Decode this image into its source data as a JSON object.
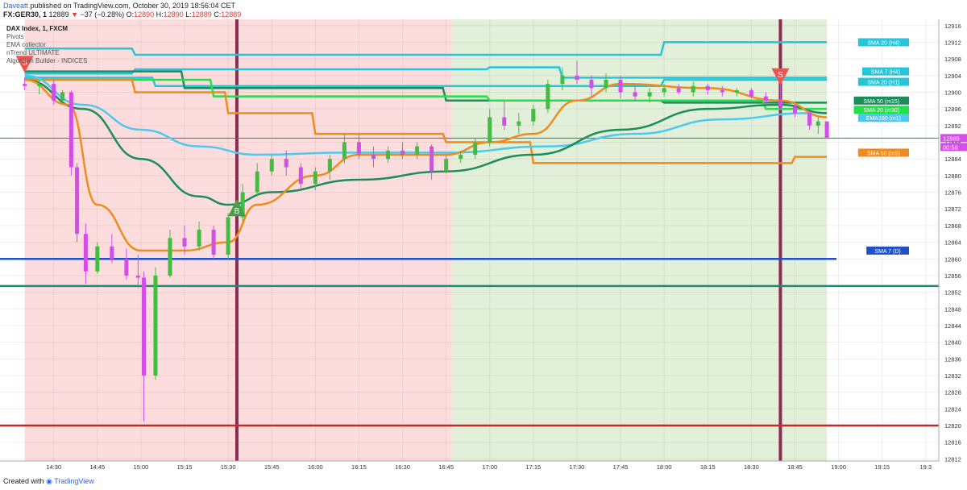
{
  "header": {
    "author": "Daveatt",
    "published": "published on TradingView.com, October 30, 2019 18:56:04 CET",
    "symbol": "FX:GER30, 1",
    "last": "12889",
    "change": "−37 (−0.28%)",
    "open_label": "O:",
    "open": "12890",
    "high_label": "H:",
    "high": "12890",
    "low_label": "L:",
    "low": "12889",
    "close_label": "C:",
    "close": "12889"
  },
  "indicators": {
    "title": "DAX Index, 1, FXCM",
    "items": [
      "Pivots",
      "EMA collector",
      "nTrend ULTIMATE",
      "Algorithm Builder - INDICES"
    ]
  },
  "footer": {
    "created": "Created with",
    "brand": "TradingView"
  },
  "colors": {
    "bg_red": "#fcdcdc",
    "bg_green": "#e2efd9",
    "bull": "#3fbf3f",
    "bear": "#d24ee6",
    "sma20_h4": "#26c6da",
    "sma7_h4": "#26c6da",
    "sma20_h1": "#26c6da",
    "sma50_m15": "#1a8d5a",
    "sma20_m30": "#23e04a",
    "ema180_m1": "#4dc8f0",
    "sma50_m5": "#f08c1e",
    "sma7_d": "#1e50c8",
    "pivot": "#c82828",
    "support": "#1a8c78"
  },
  "chart_data": {
    "type": "candlestick",
    "symbol": "FX:GER30",
    "interval": "1",
    "x_ticks": [
      "14:30",
      "14:45",
      "15:00",
      "15:15",
      "15:30",
      "15:45",
      "16:00",
      "16:15",
      "16:30",
      "16:45",
      "17:00",
      "17:15",
      "17:30",
      "17:45",
      "18:00",
      "18:15",
      "18:30",
      "18:45",
      "19:00",
      "19:15",
      "19:3"
    ],
    "y_ticks": [
      12916,
      12912,
      12908,
      12904,
      12900,
      12896,
      12892,
      12888,
      12884,
      12880,
      12876,
      12872,
      12868,
      12864,
      12860,
      12856,
      12852,
      12848,
      12844,
      12840,
      12836,
      12832,
      12828,
      12824,
      12820,
      12816,
      12812
    ],
    "ylim": [
      12811.5,
      12917.5
    ],
    "last_price_label": "12889",
    "countdown_label": "00:58",
    "sessions": [
      {
        "from": "14:20",
        "to": "16:47",
        "color": "red"
      },
      {
        "from": "16:47",
        "to": "18:56",
        "color": "green"
      }
    ],
    "candles": [
      [
        "14:20",
        12902.0,
        12903.5,
        12900.5,
        12901.5
      ],
      [
        "14:25",
        12901.5,
        12903.0,
        12899.5,
        12902.0
      ],
      [
        "14:30",
        12902.0,
        12903.0,
        12897.0,
        12898.0
      ],
      [
        "14:33",
        12898.0,
        12900.5,
        12897.5,
        12900.0
      ],
      [
        "14:36",
        12900.0,
        12900.5,
        12880.0,
        12882.0
      ],
      [
        "14:38",
        12882.0,
        12883.0,
        12864.0,
        12866.0
      ],
      [
        "14:41",
        12866.0,
        12868.5,
        12854.0,
        12857.0
      ],
      [
        "14:45",
        12857.0,
        12864.0,
        12856.5,
        12863.0
      ],
      [
        "14:50",
        12863.0,
        12866.0,
        12859.0,
        12860.0
      ],
      [
        "14:55",
        12860.0,
        12862.5,
        12855.0,
        12856.0
      ],
      [
        "14:59",
        12856.0,
        12861.0,
        12853.0,
        12855.5
      ],
      [
        "15:01",
        12855.5,
        12857.0,
        12821.0,
        12832.0
      ],
      [
        "15:05",
        12832.0,
        12858.0,
        12831.0,
        12856.0
      ],
      [
        "15:10",
        12856.0,
        12867.0,
        12855.5,
        12865.0
      ],
      [
        "15:15",
        12865.0,
        12868.0,
        12861.0,
        12863.0
      ],
      [
        "15:20",
        12863.0,
        12869.0,
        12862.0,
        12867.0
      ],
      [
        "15:25",
        12867.0,
        12868.0,
        12860.0,
        12861.0
      ],
      [
        "15:30",
        12861.0,
        12871.0,
        12860.0,
        12870.0
      ],
      [
        "15:35",
        12870.0,
        12878.0,
        12869.0,
        12876.0
      ],
      [
        "15:40",
        12876.0,
        12883.0,
        12875.0,
        12881.0
      ],
      [
        "15:45",
        12881.0,
        12885.0,
        12880.0,
        12884.0
      ],
      [
        "15:50",
        12884.0,
        12886.0,
        12880.0,
        12882.0
      ],
      [
        "15:55",
        12882.0,
        12883.0,
        12877.0,
        12878.0
      ],
      [
        "16:00",
        12878.0,
        12882.0,
        12876.5,
        12881.0
      ],
      [
        "16:05",
        12881.0,
        12885.0,
        12879.0,
        12884.0
      ],
      [
        "16:10",
        12884.0,
        12890.0,
        12883.0,
        12888.0
      ],
      [
        "16:15",
        12888.0,
        12890.0,
        12884.0,
        12885.0
      ],
      [
        "16:20",
        12885.0,
        12887.0,
        12882.0,
        12884.0
      ],
      [
        "16:25",
        12884.0,
        12887.0,
        12883.0,
        12886.0
      ],
      [
        "16:30",
        12886.0,
        12888.0,
        12884.0,
        12885.0
      ],
      [
        "16:35",
        12885.0,
        12888.0,
        12884.0,
        12887.0
      ],
      [
        "16:40",
        12887.0,
        12887.5,
        12879.0,
        12881.0
      ],
      [
        "16:45",
        12881.0,
        12885.0,
        12880.5,
        12884.0
      ],
      [
        "16:50",
        12884.0,
        12886.0,
        12883.0,
        12885.0
      ],
      [
        "16:55",
        12885.0,
        12889.0,
        12884.0,
        12888.0
      ],
      [
        "17:00",
        12888.0,
        12896.0,
        12887.0,
        12894.0
      ],
      [
        "17:05",
        12894.0,
        12898.0,
        12891.0,
        12892.0
      ],
      [
        "17:10",
        12892.0,
        12895.0,
        12890.0,
        12893.0
      ],
      [
        "17:15",
        12893.0,
        12897.0,
        12892.0,
        12896.0
      ],
      [
        "17:20",
        12896.0,
        12903.0,
        12895.0,
        12902.0
      ],
      [
        "17:25",
        12902.0,
        12906.0,
        12900.5,
        12904.0
      ],
      [
        "17:30",
        12904.0,
        12907.5,
        12902.0,
        12903.0
      ],
      [
        "17:35",
        12903.0,
        12904.0,
        12899.0,
        12901.0
      ],
      [
        "17:40",
        12901.0,
        12904.5,
        12900.0,
        12903.0
      ],
      [
        "17:45",
        12903.0,
        12904.0,
        12898.5,
        12900.0
      ],
      [
        "17:50",
        12900.0,
        12901.5,
        12898.0,
        12899.0
      ],
      [
        "17:55",
        12899.0,
        12901.0,
        12897.5,
        12900.0
      ],
      [
        "18:00",
        12900.0,
        12902.0,
        12899.0,
        12901.0
      ],
      [
        "18:05",
        12901.0,
        12902.0,
        12899.5,
        12900.0
      ],
      [
        "18:10",
        12900.0,
        12902.5,
        12899.0,
        12901.5
      ],
      [
        "18:15",
        12901.5,
        12902.0,
        12899.5,
        12900.5
      ],
      [
        "18:20",
        12900.5,
        12901.5,
        12899.0,
        12900.0
      ],
      [
        "18:25",
        12900.0,
        12901.0,
        12899.0,
        12900.5
      ],
      [
        "18:30",
        12900.5,
        12901.0,
        12898.5,
        12899.0
      ],
      [
        "18:35",
        12899.0,
        12900.0,
        12897.0,
        12898.0
      ],
      [
        "18:40",
        12898.0,
        12905.0,
        12896.0,
        12896.5
      ],
      [
        "18:45",
        12896.5,
        12897.0,
        12894.0,
        12895.0
      ],
      [
        "18:50",
        12895.0,
        12895.5,
        12891.0,
        12892.0
      ],
      [
        "18:53",
        12892.0,
        12894.0,
        12890.0,
        12893.0
      ],
      [
        "18:56",
        12893.0,
        12893.0,
        12889.0,
        12889.0
      ]
    ],
    "levels": [
      {
        "name": "SMA 20 (H4)",
        "color_key": "sma20_h4",
        "steps": [
          [
            "14:20",
            12910.5
          ],
          [
            "14:58",
            12909.0
          ],
          [
            "18:00",
            12912.0
          ]
        ]
      },
      {
        "name": "SMA 7 (H4)",
        "color_key": "sma7_h4",
        "steps": [
          [
            "14:20",
            12904.5
          ],
          [
            "14:58",
            12905.5
          ],
          [
            "17:00",
            12906.0
          ],
          [
            "17:25",
            12903.5
          ]
        ]
      },
      {
        "name": "SMA 20 (H1)",
        "color_key": "sma20_h1",
        "steps": [
          [
            "14:20",
            12903.5
          ],
          [
            "15:05",
            12901.5
          ],
          [
            "18:00",
            12903.0
          ]
        ]
      },
      {
        "name": "SMA 50 (m15)",
        "color_key": "sma50_m15",
        "steps": [
          [
            "14:20",
            12905.0
          ],
          [
            "15:15",
            12901.0
          ],
          [
            "16:45",
            12898.0
          ],
          [
            "18:00",
            12897.5
          ]
        ]
      },
      {
        "name": "SMA 20 (m30)",
        "color_key": "sma20_m30",
        "steps": [
          [
            "14:20",
            12903.0
          ],
          [
            "15:25",
            12899.0
          ],
          [
            "17:00",
            12898.0
          ],
          [
            "18:35",
            12896.0
          ]
        ]
      },
      {
        "name": "SMA 50 (m5)",
        "color_key": "sma50_m5",
        "steps": [
          [
            "14:20",
            12903.0
          ],
          [
            "14:58",
            12900.0
          ],
          [
            "15:30",
            12895.0
          ],
          [
            "16:00",
            12890.0
          ],
          [
            "16:45",
            12888.0
          ],
          [
            "17:15",
            12883.0
          ],
          [
            "18:45",
            12884.5
          ]
        ]
      }
    ],
    "curves": [
      {
        "name": "EMA180 (m1)",
        "color_key": "ema180_m1",
        "points": [
          [
            "14:20",
            12904.0
          ],
          [
            "14:40",
            12897.0
          ],
          [
            "15:00",
            12891.0
          ],
          [
            "15:20",
            12887.0
          ],
          [
            "15:40",
            12885.0
          ],
          [
            "16:10",
            12885.5
          ],
          [
            "16:45",
            12885.5
          ],
          [
            "17:20",
            12887.0
          ],
          [
            "17:50",
            12890.0
          ],
          [
            "18:20",
            12893.5
          ],
          [
            "18:50",
            12895.0
          ]
        ]
      },
      {
        "name": "EMA",
        "color_key": "sma50_m15",
        "points": [
          [
            "14:20",
            12903.0
          ],
          [
            "14:40",
            12896.0
          ],
          [
            "15:00",
            12884.0
          ],
          [
            "15:20",
            12875.0
          ],
          [
            "15:30",
            12873.0
          ],
          [
            "15:45",
            12876.0
          ],
          [
            "16:15",
            12879.0
          ],
          [
            "16:45",
            12881.0
          ],
          [
            "17:15",
            12885.0
          ],
          [
            "17:45",
            12891.0
          ],
          [
            "18:15",
            12896.0
          ],
          [
            "18:40",
            12897.0
          ],
          [
            "18:56",
            12895.0
          ]
        ]
      },
      {
        "name": "Fast MA",
        "color_key": "sma50_m5",
        "points": [
          [
            "14:20",
            12903.0
          ],
          [
            "14:35",
            12897.0
          ],
          [
            "14:45",
            12873.0
          ],
          [
            "15:00",
            12862.0
          ],
          [
            "15:15",
            12862.0
          ],
          [
            "15:30",
            12864.0
          ],
          [
            "15:40",
            12873.0
          ],
          [
            "16:00",
            12880.0
          ],
          [
            "16:15",
            12885.0
          ],
          [
            "16:45",
            12885.0
          ],
          [
            "17:00",
            12888.0
          ],
          [
            "17:15",
            12890.0
          ],
          [
            "17:30",
            12898.0
          ],
          [
            "17:45",
            12902.0
          ],
          [
            "18:15",
            12901.0
          ],
          [
            "18:40",
            12898.0
          ],
          [
            "18:56",
            12894.0
          ]
        ]
      }
    ],
    "horizontal_lines": [
      {
        "name": "SMA 7 (D)",
        "price": 12860.0,
        "color_key": "sma7_d"
      },
      {
        "name": "Pivot",
        "price": 12820.0,
        "color_key": "pivot"
      },
      {
        "name": "Support",
        "price": 12853.5,
        "color_key": "support"
      },
      {
        "name": "Last",
        "price": 12889.0,
        "color_key": "support"
      }
    ],
    "signals": [
      {
        "label": "S",
        "time": "14:20",
        "price": 12907.0,
        "type": "sell"
      },
      {
        "label": "B",
        "time": "15:33",
        "price": 12872.0,
        "type": "buy"
      },
      {
        "label": "S",
        "time": "18:40",
        "price": 12904.0,
        "type": "sell"
      }
    ],
    "vertical_markers": [
      "15:33",
      "18:40"
    ],
    "right_labels": [
      {
        "text": "SMA 20 (H4)",
        "price": 12912.0,
        "color_key": "sma20_h4"
      },
      {
        "text": "SMA 7 (H4)",
        "price": 12905.0,
        "color_key": "sma7_h4"
      },
      {
        "text": "SMA 20 (H1)",
        "price": 12902.5,
        "color_key": "sma20_h1"
      },
      {
        "text": "SMA 50 (m15)",
        "price": 12898.0,
        "color_key": "sma50_m15"
      },
      {
        "text": "SMA 20 (m30)",
        "price": 12895.8,
        "color_key": "sma20_m30"
      },
      {
        "text": "EMA180 (m1)",
        "price": 12893.9,
        "color_key": "ema180_m1"
      },
      {
        "text": "SMA 50 (m5)",
        "price": 12885.5,
        "color_key": "sma50_m5"
      },
      {
        "text": "SMA 7 (D)",
        "price": 12862.0,
        "color_key": "sma7_d"
      }
    ]
  }
}
